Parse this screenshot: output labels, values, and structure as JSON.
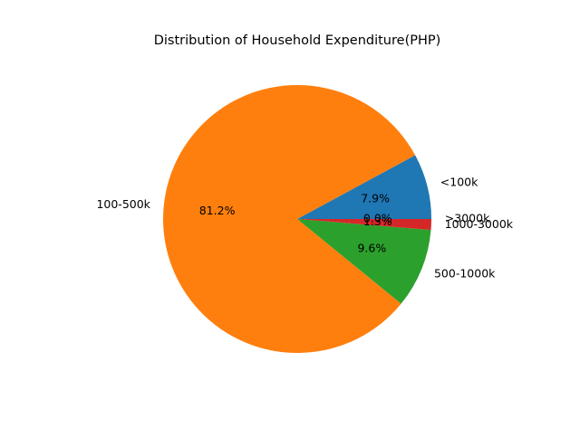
{
  "chart_data": {
    "type": "pie",
    "title": "Distribution of Household Expenditure(PHP)",
    "slices": [
      {
        "label": "<100k",
        "value": 7.9,
        "pct_label": "7.9%",
        "color": "#1f77b4"
      },
      {
        "label": "100-500k",
        "value": 81.2,
        "pct_label": "81.2%",
        "color": "#ff7f0e"
      },
      {
        "label": "500-1000k",
        "value": 9.6,
        "pct_label": "9.6%",
        "color": "#2ca02c"
      },
      {
        "label": "1000-3000k",
        "value": 1.3,
        "pct_label": "1.3%",
        "color": "#d62728"
      },
      {
        "label": ">3000k",
        "value": 0.0,
        "pct_label": "0.0%",
        "color": "#9467bd"
      }
    ],
    "start_angle": 0,
    "direction": "counterclockwise"
  }
}
